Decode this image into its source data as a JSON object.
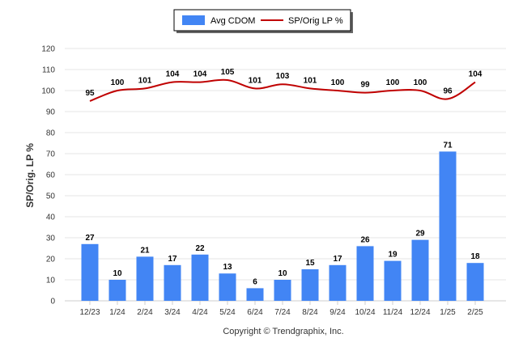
{
  "chart_data": {
    "type": "bar",
    "title": "",
    "ylabel": "SP/Orig. LP %",
    "xlabel": "",
    "ylim": [
      0,
      120
    ],
    "yticks": [
      0,
      10,
      20,
      30,
      40,
      50,
      60,
      70,
      80,
      90,
      100,
      110,
      120
    ],
    "grid": true,
    "legend_position": "top-center",
    "categories": [
      "12/23",
      "1/24",
      "2/24",
      "3/24",
      "4/24",
      "5/24",
      "6/24",
      "7/24",
      "8/24",
      "9/24",
      "10/24",
      "11/24",
      "12/24",
      "1/25",
      "2/25"
    ],
    "series": [
      {
        "name": "Avg CDOM",
        "type": "bar",
        "color": "#4285f4",
        "values": [
          27,
          10,
          21,
          17,
          22,
          13,
          6,
          10,
          15,
          17,
          26,
          19,
          29,
          71,
          18
        ]
      },
      {
        "name": "SP/Orig LP %",
        "type": "line",
        "color": "#c00000",
        "values": [
          95,
          100,
          101,
          104,
          104,
          105,
          101,
          103,
          101,
          100,
          99,
          100,
          100,
          96,
          104
        ]
      }
    ]
  },
  "footer": {
    "copyright": "Copyright © Trendgraphix, Inc."
  }
}
